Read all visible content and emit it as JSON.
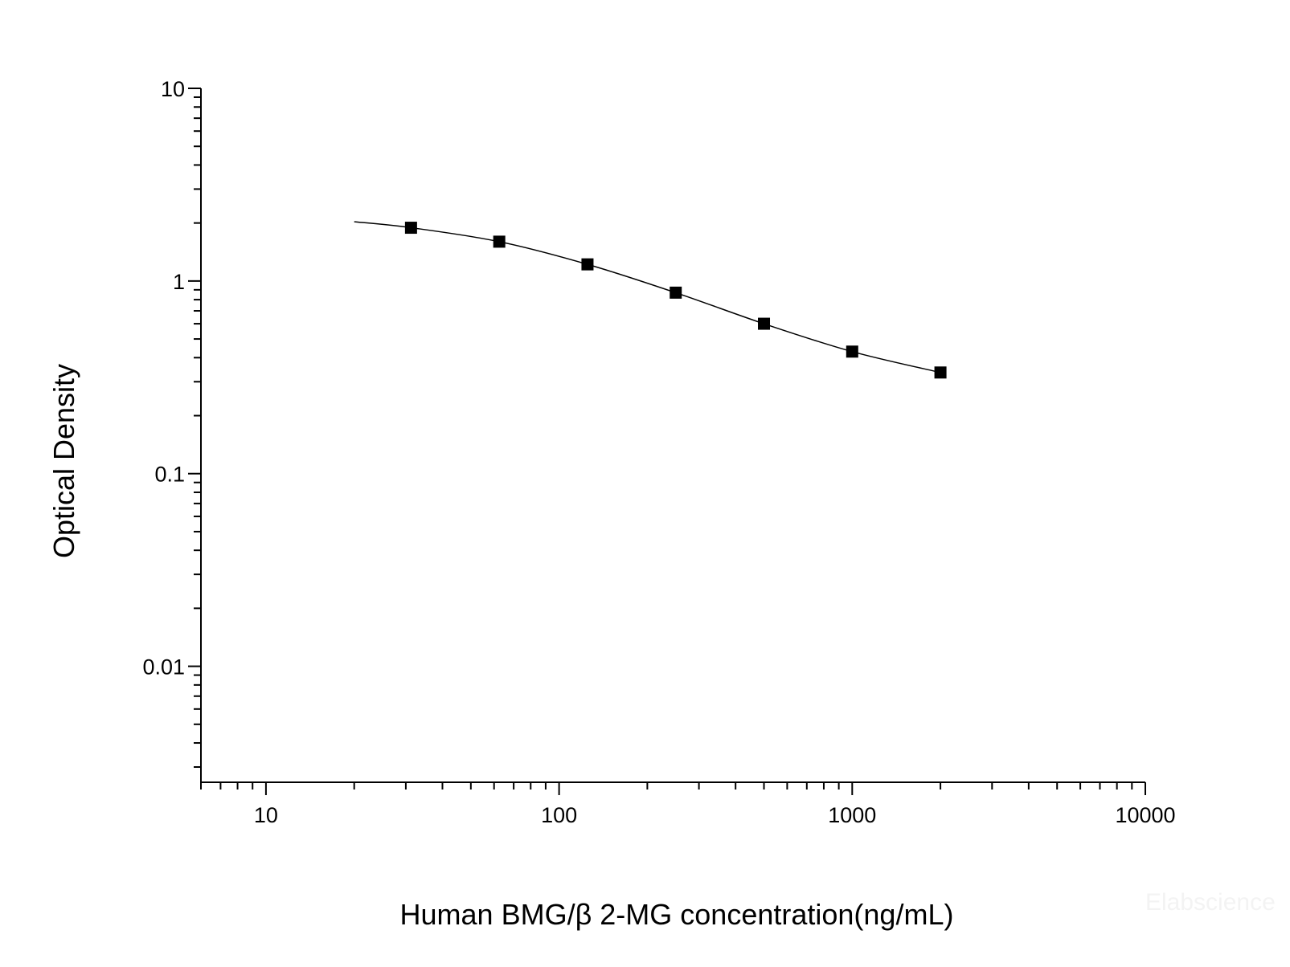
{
  "chart_data": {
    "type": "scatter",
    "xlabel": "Human BMG/β 2-MG concentration(ng/mL)",
    "ylabel": "Optical Density",
    "x_scale": "log",
    "y_scale": "log",
    "xlim": [
      6,
      10000
    ],
    "ylim": [
      0.0025,
      10
    ],
    "x_ticks": [
      {
        "value": 10,
        "label": "10"
      },
      {
        "value": 100,
        "label": "100"
      },
      {
        "value": 1000,
        "label": "1000"
      },
      {
        "value": 10000,
        "label": "10000"
      }
    ],
    "y_ticks": [
      {
        "value": 0.01,
        "label": "0.01"
      },
      {
        "value": 0.1,
        "label": "0.1"
      },
      {
        "value": 1,
        "label": "1"
      },
      {
        "value": 10,
        "label": "10"
      }
    ],
    "grid": false,
    "series": [
      {
        "x": [
          31.25,
          62.5,
          125,
          250,
          500,
          1000,
          2000
        ],
        "y": [
          1.89,
          1.6,
          1.22,
          0.87,
          0.6,
          0.43,
          0.335
        ],
        "marker": "square",
        "color": "#000000"
      }
    ],
    "fit_curve": {
      "x": [
        20,
        31.25,
        62.5,
        125,
        250,
        500,
        1000,
        2000
      ],
      "y": [
        2.03,
        1.89,
        1.6,
        1.22,
        0.87,
        0.6,
        0.43,
        0.335
      ],
      "color": "#000000"
    },
    "watermark": "Elabscience"
  }
}
